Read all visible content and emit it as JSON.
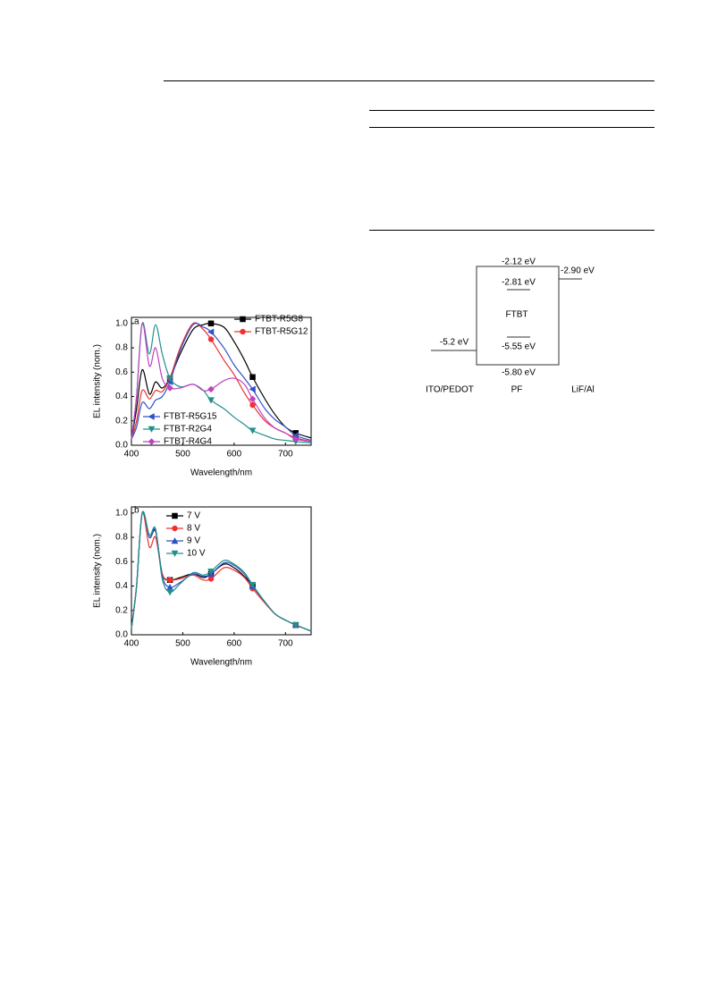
{
  "chart_data": [
    {
      "type": "line",
      "panel_label": "a",
      "x_label": "Wavelength/nm",
      "y_label": "EL intensity (nom.)",
      "x": [
        400,
        410,
        421,
        435,
        447,
        460,
        475,
        495,
        520,
        540,
        555,
        580,
        600,
        620,
        636,
        660,
        680,
        700,
        720,
        750
      ],
      "xlim": [
        400,
        750
      ],
      "xticks": [
        400,
        500,
        600,
        700
      ],
      "ylim": [
        0,
        1.05
      ],
      "yticks": [
        {
          "value": 0,
          "label": "0.0"
        },
        0.2,
        0.4,
        0.6,
        0.8,
        {
          "value": 1,
          "label": "1.0"
        }
      ],
      "series": [
        {
          "name": "FTBT-R5G8",
          "color": "#000000",
          "marker": "square",
          "legend": "upper right",
          "values": [
            0.05,
            0.3,
            0.62,
            0.42,
            0.52,
            0.47,
            0.55,
            0.75,
            0.95,
            0.99,
            1.0,
            0.97,
            0.85,
            0.7,
            0.56,
            0.38,
            0.25,
            0.15,
            0.1,
            0.06
          ]
        },
        {
          "name": "FTBT-R5G12",
          "color": "#f03030",
          "marker": "circle",
          "legend": "upper right",
          "values": [
            0.05,
            0.2,
            0.45,
            0.38,
            0.45,
            0.44,
            0.55,
            0.8,
            1.0,
            0.95,
            0.87,
            0.7,
            0.58,
            0.43,
            0.33,
            0.2,
            0.14,
            0.1,
            0.06,
            0.03
          ]
        },
        {
          "name": "FTBT-R5G15",
          "color": "#3050c8",
          "marker": "triangle-left",
          "legend": "lower left",
          "values": [
            0.05,
            0.15,
            0.35,
            0.3,
            0.37,
            0.4,
            0.52,
            0.78,
            0.99,
            0.97,
            0.93,
            0.8,
            0.66,
            0.55,
            0.46,
            0.3,
            0.21,
            0.15,
            0.08,
            0.04
          ]
        },
        {
          "name": "FTBT-R2G4",
          "color": "#20908c",
          "marker": "triangle-down",
          "legend": "lower left",
          "values": [
            0.05,
            0.4,
            1.0,
            0.75,
            0.99,
            0.75,
            0.55,
            0.48,
            0.5,
            0.45,
            0.37,
            0.3,
            0.23,
            0.17,
            0.12,
            0.08,
            0.05,
            0.04,
            0.03,
            0.02
          ]
        },
        {
          "name": "FTBT-R4G4",
          "color": "#c040c0",
          "marker": "diamond",
          "legend": "lower left",
          "values": [
            0.05,
            0.4,
            1.0,
            0.65,
            0.8,
            0.55,
            0.47,
            0.47,
            0.5,
            0.45,
            0.46,
            0.53,
            0.55,
            0.5,
            0.38,
            0.22,
            0.14,
            0.1,
            0.05,
            0.03
          ]
        }
      ]
    },
    {
      "type": "line",
      "panel_label": "b",
      "x_label": "Wavelength/nm",
      "y_label": "EL intensity (nom.)",
      "x": [
        400,
        410,
        421,
        435,
        447,
        460,
        475,
        495,
        520,
        540,
        555,
        580,
        600,
        620,
        636,
        660,
        680,
        700,
        720,
        750
      ],
      "xlim": [
        400,
        750
      ],
      "xticks": [
        400,
        500,
        600,
        700
      ],
      "ylim": [
        0,
        1.05
      ],
      "yticks": [
        {
          "value": 0,
          "label": "0.0"
        },
        0.2,
        0.4,
        0.6,
        0.8,
        {
          "value": 1,
          "label": "1.0"
        }
      ],
      "series": [
        {
          "name": "7 V",
          "color": "#000000",
          "marker": "square",
          "legend": "upper left",
          "values": [
            0.05,
            0.4,
            1.0,
            0.8,
            0.85,
            0.5,
            0.45,
            0.47,
            0.5,
            0.47,
            0.5,
            0.58,
            0.55,
            0.48,
            0.4,
            0.27,
            0.17,
            0.12,
            0.08,
            0.03
          ]
        },
        {
          "name": "8 V",
          "color": "#f03030",
          "marker": "circle",
          "legend": "upper left",
          "values": [
            0.05,
            0.4,
            1.0,
            0.72,
            0.8,
            0.5,
            0.45,
            0.46,
            0.49,
            0.45,
            0.46,
            0.55,
            0.53,
            0.47,
            0.38,
            0.26,
            0.17,
            0.12,
            0.08,
            0.03
          ]
        },
        {
          "name": "9 V",
          "color": "#3050c8",
          "marker": "triangle-up",
          "legend": "upper left",
          "values": [
            0.05,
            0.4,
            1.0,
            0.8,
            0.86,
            0.48,
            0.39,
            0.43,
            0.5,
            0.48,
            0.5,
            0.59,
            0.57,
            0.5,
            0.4,
            0.27,
            0.17,
            0.12,
            0.08,
            0.03
          ]
        },
        {
          "name": "10 V",
          "color": "#20908c",
          "marker": "triangle-down",
          "legend": "upper left",
          "values": [
            0.05,
            0.4,
            1.0,
            0.82,
            0.87,
            0.46,
            0.35,
            0.42,
            0.51,
            0.49,
            0.52,
            0.61,
            0.58,
            0.51,
            0.41,
            0.27,
            0.17,
            0.12,
            0.08,
            0.03
          ]
        }
      ]
    }
  ],
  "energy_diagram": {
    "pf_lumo": "-2.12 eV",
    "lif_level": "-2.90 eV",
    "ftbt_lumo": "-2.81 eV",
    "ftbt_label": "FTBT",
    "ito_level": "-5.2 eV",
    "ftbt_homo": "-5.55 eV",
    "pf_homo": "-5.80 eV",
    "labels": [
      "ITO/PEDOT",
      "PF",
      "LiF/Al"
    ]
  }
}
